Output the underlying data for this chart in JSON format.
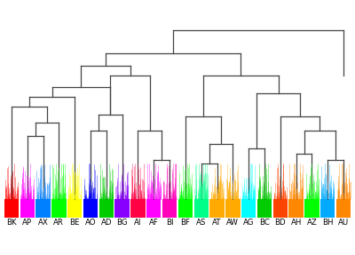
{
  "labels": [
    "BK",
    "AP",
    "AX",
    "AR",
    "BE",
    "AO",
    "AD",
    "BG",
    "AI",
    "AF",
    "BI",
    "BF",
    "AS",
    "AT",
    "AW",
    "AG",
    "BC",
    "BD",
    "AH",
    "AZ",
    "BH",
    "AU"
  ],
  "colors": [
    "#ff0000",
    "#ff00ff",
    "#0080ff",
    "#00ff00",
    "#ffff00",
    "#0000ff",
    "#00cc00",
    "#8800ff",
    "#ff0044",
    "#ff00ff",
    "#ff00bb",
    "#00ff00",
    "#00ff88",
    "#ffaa00",
    "#ffaa00",
    "#00ffff",
    "#00cc00",
    "#ff4400",
    "#ff8800",
    "#00ff00",
    "#00aaff",
    "#ff8800"
  ],
  "n_leaves": 22,
  "bg_color": "#ffffff",
  "line_color": "#444444",
  "line_width": 0.9
}
